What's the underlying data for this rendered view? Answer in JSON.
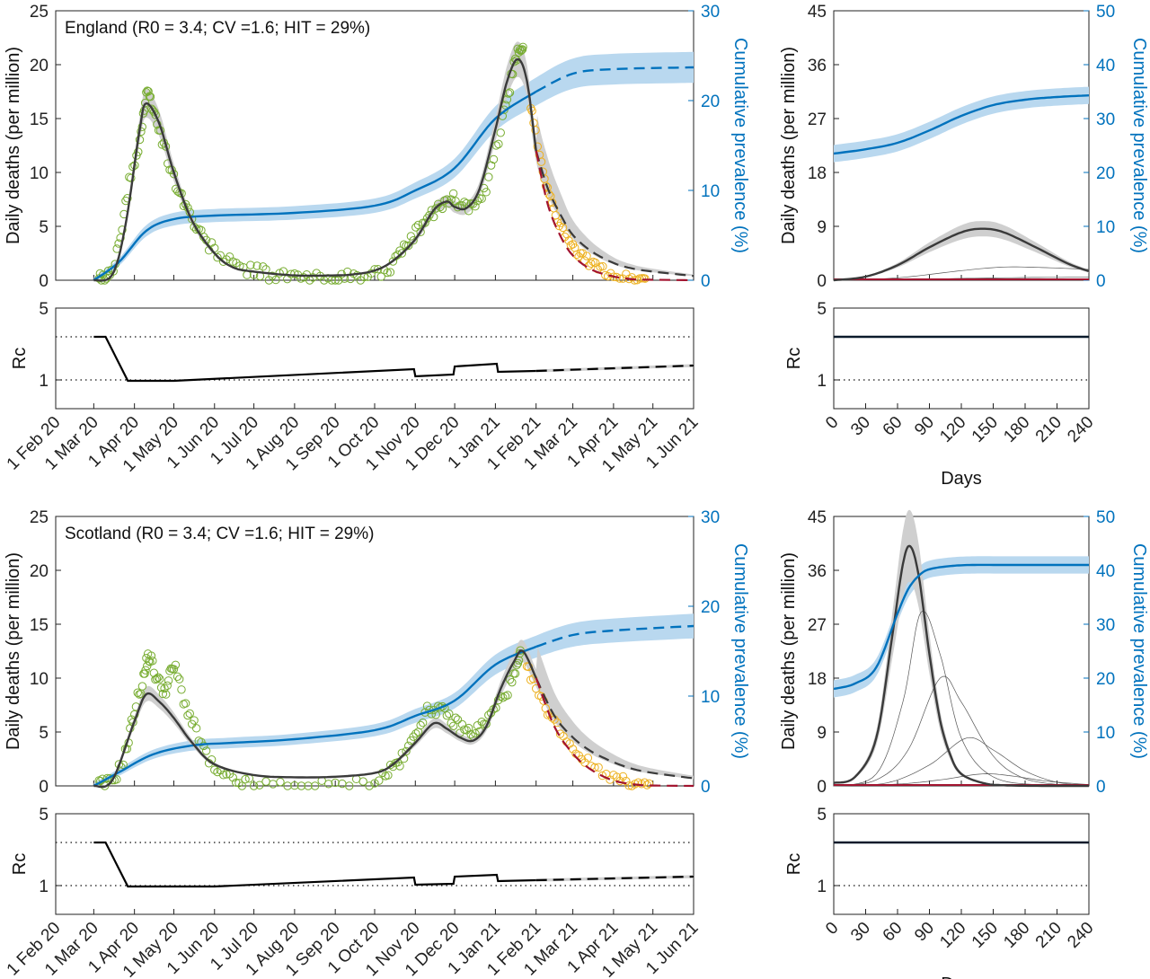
{
  "colors": {
    "deaths_model": "#3a3a3a",
    "deaths_band": "#cfcfcf",
    "prevalence": "#0072bd",
    "prevalence_band": "#b9d8ef",
    "data_fitted": "#77ac30",
    "data_recent": "#edb120",
    "projection_red": "#a2142f",
    "rc_line": "#000000"
  },
  "chart_data": [
    {
      "id": "england-main",
      "type": "line",
      "title": "England (R0 = 3.4; CV =1.6; HIT = 29%)",
      "ylabel": "Daily deaths (per million)",
      "ylabel_right": "Cumulative prevalence (%)",
      "x_ticks": [
        "1 Feb 20",
        "1 Mar 20",
        "1 Apr 20",
        "1 May 20",
        "1 Jun 20",
        "1 Jul 20",
        "1 Aug 20",
        "1 Sep 20",
        "1 Oct 20",
        "1 Nov 20",
        "1 Dec 20",
        "1 Jan 21",
        "1 Feb 21",
        "1 Mar 21",
        "1 Apr 21",
        "1 May 21",
        "1 Jun 21"
      ],
      "ylim": [
        0,
        25
      ],
      "yticks": [
        0,
        5,
        10,
        15,
        20,
        25
      ],
      "ylim_right": [
        0,
        30
      ],
      "yticks_right": [
        0,
        10,
        20,
        30
      ],
      "deaths_model": {
        "x": [
          "2020-03-01",
          "2020-03-15",
          "2020-03-25",
          "2020-04-05",
          "2020-04-10",
          "2020-04-20",
          "2020-05-01",
          "2020-05-15",
          "2020-06-01",
          "2020-06-15",
          "2020-07-01",
          "2020-08-01",
          "2020-09-01",
          "2020-09-15",
          "2020-10-01",
          "2020-10-15",
          "2020-11-01",
          "2020-11-15",
          "2020-11-25",
          "2020-12-01",
          "2020-12-10",
          "2020-12-20",
          "2021-01-01",
          "2021-01-10",
          "2021-01-18",
          "2021-01-25",
          "2021-02-01"
        ],
        "y": [
          0,
          0.5,
          5,
          14,
          16.4,
          14.5,
          10,
          5.5,
          2.5,
          1.2,
          0.8,
          0.45,
          0.45,
          0.55,
          0.9,
          1.8,
          3.8,
          6.5,
          7.3,
          6.8,
          6.7,
          8.5,
          14,
          18.5,
          20.5,
          18.5,
          12
        ]
      },
      "deaths_projection": {
        "x": [
          "2021-02-01",
          "2021-02-10",
          "2021-02-20",
          "2021-03-01",
          "2021-03-15",
          "2021-04-01",
          "2021-04-15",
          "2021-05-01",
          "2021-06-01"
        ],
        "y": [
          12,
          8.5,
          6,
          4.2,
          2.7,
          1.6,
          1.1,
          0.8,
          0.4
        ]
      },
      "deaths_projection_red": {
        "x": [
          "2021-02-01",
          "2021-02-10",
          "2021-02-20",
          "2021-03-01",
          "2021-03-15",
          "2021-04-01",
          "2021-04-15",
          "2021-04-25"
        ],
        "y": [
          12,
          7,
          4,
          2.3,
          1,
          0.35,
          0.1,
          0.05
        ]
      },
      "observed_fitted": {
        "x": [
          "2020-03-05",
          "2020-03-12",
          "2020-03-20",
          "2020-03-28",
          "2020-04-05",
          "2020-04-10",
          "2020-04-15",
          "2020-04-22",
          "2020-05-01",
          "2020-05-10",
          "2020-05-20",
          "2020-06-01",
          "2020-06-15",
          "2020-07-01",
          "2020-07-15",
          "2020-08-01",
          "2020-08-15",
          "2020-09-01",
          "2020-09-15",
          "2020-10-01",
          "2020-10-15",
          "2020-10-25",
          "2020-11-05",
          "2020-11-15",
          "2020-11-25",
          "2020-12-05",
          "2020-12-15",
          "2020-12-25",
          "2021-01-05",
          "2021-01-12",
          "2021-01-18",
          "2021-01-22"
        ],
        "y": [
          0.1,
          0.5,
          3,
          9,
          13,
          17,
          16,
          13,
          9.5,
          7,
          4.5,
          2.8,
          1.5,
          0.9,
          0.5,
          0.3,
          0.2,
          0.15,
          0.3,
          0.6,
          1.5,
          3,
          5,
          6.2,
          7.5,
          7.3,
          6.9,
          8.5,
          14,
          18,
          21,
          22
        ]
      },
      "observed_recent": {
        "x": [
          "2021-01-28",
          "2021-02-05",
          "2021-02-12",
          "2021-02-20",
          "2021-03-01",
          "2021-03-10",
          "2021-03-20",
          "2021-04-01",
          "2021-04-15",
          "2021-04-25"
        ],
        "y": [
          16,
          11,
          7.5,
          5,
          3,
          2,
          1.2,
          0.5,
          0.2,
          0.1
        ]
      },
      "prevalence_model": {
        "x": [
          "2020-03-01",
          "2020-03-20",
          "2020-04-10",
          "2020-05-01",
          "2020-06-01",
          "2020-08-01",
          "2020-10-01",
          "2020-11-01",
          "2020-12-01",
          "2021-01-01",
          "2021-02-01"
        ],
        "y": [
          0,
          2,
          5.5,
          6.8,
          7.2,
          7.5,
          8.3,
          10,
          12.5,
          18,
          21
        ]
      },
      "prevalence_projection": {
        "x": [
          "2021-02-01",
          "2021-03-01",
          "2021-04-01",
          "2021-06-01"
        ],
        "y": [
          21,
          23,
          23.5,
          23.7
        ]
      }
    },
    {
      "id": "england-rc",
      "type": "line",
      "ylabel": "Rc",
      "yticks": [
        1,
        5
      ],
      "reference_lines": [
        1,
        3.4
      ],
      "rc_model": {
        "x": [
          "2020-03-01",
          "2020-03-10",
          "2020-03-27",
          "2020-05-01",
          "2020-10-31",
          "2020-11-01",
          "2020-11-30",
          "2020-12-01",
          "2021-01-02",
          "2021-01-03",
          "2021-02-01"
        ],
        "y": [
          3.4,
          3.4,
          0.95,
          0.95,
          1.6,
          1.2,
          1.3,
          1.75,
          1.9,
          1.45,
          1.5
        ]
      },
      "rc_projection": {
        "x": [
          "2021-02-01",
          "2021-06-01"
        ],
        "y": [
          1.5,
          1.8
        ]
      }
    },
    {
      "id": "england-side",
      "type": "line",
      "xlabel": "Days",
      "ylabel": "Daily deaths (per million)",
      "ylabel_right": "Cumulative prevalence (%)",
      "xticks": [
        0,
        30,
        60,
        90,
        120,
        150,
        180,
        210,
        240
      ],
      "ylim": [
        0,
        45
      ],
      "yticks": [
        0,
        9,
        18,
        27,
        36,
        45
      ],
      "ylim_right": [
        0,
        50
      ],
      "yticks_right": [
        0,
        10,
        20,
        30,
        40,
        50
      ],
      "deaths_model": {
        "x": [
          0,
          30,
          60,
          90,
          120,
          140,
          160,
          190,
          220,
          240
        ],
        "y": [
          0,
          0.6,
          2.5,
          5.5,
          8,
          8.6,
          8,
          5.5,
          2.8,
          1.5
        ]
      },
      "prevalence_model": {
        "x": [
          0,
          30,
          60,
          90,
          120,
          150,
          180,
          210,
          240
        ],
        "y": [
          23.5,
          24.3,
          25.5,
          27.8,
          30.5,
          32.5,
          33.5,
          34,
          34.3
        ]
      }
    },
    {
      "id": "england-side-rc",
      "type": "line",
      "xlabel": "Days",
      "ylabel": "Rc",
      "xticks": [
        0,
        30,
        60,
        90,
        120,
        150,
        180,
        210,
        240
      ],
      "yticks": [
        1,
        5
      ],
      "rc_model": {
        "x": [
          0,
          240
        ],
        "y": [
          3.4,
          3.4
        ]
      }
    },
    {
      "id": "scotland-main",
      "type": "line",
      "title": "Scotland (R0 = 3.4; CV =1.6; HIT = 29%)",
      "ylabel": "Daily deaths (per million)",
      "ylabel_right": "Cumulative prevalence (%)",
      "x_ticks": [
        "1 Feb 20",
        "1 Mar 20",
        "1 Apr 20",
        "1 May 20",
        "1 Jun 20",
        "1 Jul 20",
        "1 Aug 20",
        "1 Sep 20",
        "1 Oct 20",
        "1 Nov 20",
        "1 Dec 20",
        "1 Jan 21",
        "1 Feb 21",
        "1 Mar 21",
        "1 Apr 21",
        "1 May 21",
        "1 Jun 21"
      ],
      "ylim": [
        0,
        25
      ],
      "yticks": [
        0,
        5,
        10,
        15,
        20,
        25
      ],
      "ylim_right": [
        0,
        30
      ],
      "yticks_right": [
        0,
        10,
        20,
        30
      ],
      "deaths_model": {
        "x": [
          "2020-03-01",
          "2020-03-15",
          "2020-04-01",
          "2020-04-10",
          "2020-04-20",
          "2020-05-01",
          "2020-05-15",
          "2020-06-01",
          "2020-07-01",
          "2020-08-01",
          "2020-09-01",
          "2020-10-01",
          "2020-10-15",
          "2020-11-01",
          "2020-11-15",
          "2020-11-25",
          "2020-12-05",
          "2020-12-15",
          "2020-12-25",
          "2021-01-05",
          "2021-01-15",
          "2021-01-22",
          "2021-02-01"
        ],
        "y": [
          0,
          0.5,
          6,
          8.5,
          7.8,
          6.3,
          4,
          2,
          1,
          0.8,
          0.85,
          1.2,
          2,
          4,
          5.8,
          5.3,
          4.5,
          4.2,
          5.5,
          9,
          11.5,
          12.5,
          10
        ]
      },
      "deaths_projection": {
        "x": [
          "2021-02-01",
          "2021-02-15",
          "2021-03-01",
          "2021-03-15",
          "2021-04-01",
          "2021-04-15",
          "2021-05-01",
          "2021-06-01"
        ],
        "y": [
          10,
          6.5,
          4.5,
          3.2,
          2.2,
          1.6,
          1.2,
          0.7
        ]
      },
      "deaths_projection_red": {
        "x": [
          "2021-02-01",
          "2021-02-15",
          "2021-03-01",
          "2021-03-15",
          "2021-04-01",
          "2021-04-20",
          "2021-05-10"
        ],
        "y": [
          10,
          5.5,
          3,
          1.5,
          0.5,
          0.1,
          0.02
        ]
      },
      "observed_fitted": {
        "x": [
          "2020-03-05",
          "2020-03-15",
          "2020-03-25",
          "2020-04-01",
          "2020-04-08",
          "2020-04-12",
          "2020-04-18",
          "2020-04-25",
          "2020-05-01",
          "2020-05-10",
          "2020-05-20",
          "2020-06-01",
          "2020-06-15",
          "2020-07-01",
          "2020-08-01",
          "2020-09-01",
          "2020-10-01",
          "2020-10-15",
          "2020-10-25",
          "2020-11-05",
          "2020-11-15",
          "2020-11-25",
          "2020-12-05",
          "2020-12-15",
          "2020-12-25",
          "2021-01-05",
          "2021-01-15",
          "2021-01-20"
        ],
        "y": [
          0.1,
          0.5,
          3,
          7,
          10,
          12,
          10,
          9,
          11,
          7.5,
          4.5,
          1.5,
          0.5,
          0.1,
          0,
          0,
          0.5,
          1.8,
          3,
          6,
          7.2,
          6.5,
          5.5,
          5,
          6,
          8,
          10,
          12
        ]
      },
      "observed_recent": {
        "x": [
          "2021-01-25",
          "2021-02-05",
          "2021-02-15",
          "2021-03-01",
          "2021-03-15",
          "2021-04-01",
          "2021-04-15",
          "2021-04-28"
        ],
        "y": [
          11,
          8,
          6,
          3.5,
          2,
          0.8,
          0.3,
          0.1
        ]
      },
      "prevalence_model": {
        "x": [
          "2020-03-01",
          "2020-03-20",
          "2020-04-15",
          "2020-05-15",
          "2020-06-15",
          "2020-08-01",
          "2020-10-01",
          "2020-11-01",
          "2020-12-01",
          "2021-01-01",
          "2021-02-01"
        ],
        "y": [
          0,
          1.5,
          3.5,
          4.5,
          4.8,
          5.2,
          6.2,
          7.8,
          9.5,
          13.5,
          15.5
        ]
      },
      "prevalence_projection": {
        "x": [
          "2021-02-01",
          "2021-03-01",
          "2021-04-01",
          "2021-06-01"
        ],
        "y": [
          15.5,
          16.8,
          17.3,
          17.8
        ]
      }
    },
    {
      "id": "scotland-rc",
      "type": "line",
      "ylabel": "Rc",
      "yticks": [
        1,
        5
      ],
      "reference_lines": [
        1,
        3.4
      ],
      "rc_model": {
        "x": [
          "2020-03-01",
          "2020-03-10",
          "2020-03-27",
          "2020-06-01",
          "2020-10-31",
          "2020-11-01",
          "2020-11-30",
          "2020-12-01",
          "2021-01-02",
          "2021-01-03",
          "2021-02-01"
        ],
        "y": [
          3.4,
          3.4,
          0.95,
          0.95,
          1.45,
          1.05,
          1.1,
          1.5,
          1.6,
          1.25,
          1.3
        ]
      },
      "rc_projection": {
        "x": [
          "2021-02-01",
          "2021-06-01"
        ],
        "y": [
          1.3,
          1.5
        ]
      }
    },
    {
      "id": "scotland-side",
      "type": "line",
      "xlabel": "Days",
      "ylabel": "Daily deaths (per million)",
      "ylabel_right": "Cumulative prevalence (%)",
      "xticks": [
        0,
        30,
        60,
        90,
        120,
        150,
        180,
        210,
        240
      ],
      "ylim": [
        0,
        45
      ],
      "yticks": [
        0,
        9,
        18,
        27,
        36,
        45
      ],
      "ylim_right": [
        0,
        50
      ],
      "yticks_right": [
        0,
        10,
        20,
        30,
        40,
        50
      ],
      "deaths_model": {
        "x": [
          0,
          20,
          40,
          55,
          65,
          72,
          80,
          90,
          100,
          110,
          120,
          140,
          160,
          200,
          240
        ],
        "y": [
          0.5,
          1.5,
          8,
          25,
          37,
          40,
          35,
          22,
          11,
          5,
          2,
          0.5,
          0.1,
          0,
          0
        ]
      },
      "prevalence_model": {
        "x": [
          0,
          20,
          40,
          60,
          70,
          80,
          90,
          110,
          130,
          160,
          200,
          240
        ],
        "y": [
          18,
          19,
          22,
          32,
          36.5,
          39,
          40.2,
          40.8,
          41,
          41,
          41,
          41
        ]
      }
    },
    {
      "id": "scotland-side-rc",
      "type": "line",
      "xlabel": "Days",
      "ylabel": "Rc",
      "xticks": [
        0,
        30,
        60,
        90,
        120,
        150,
        180,
        210,
        240
      ],
      "yticks": [
        1,
        5
      ],
      "rc_model": {
        "x": [
          0,
          240
        ],
        "y": [
          3.4,
          3.4
        ]
      }
    }
  ]
}
